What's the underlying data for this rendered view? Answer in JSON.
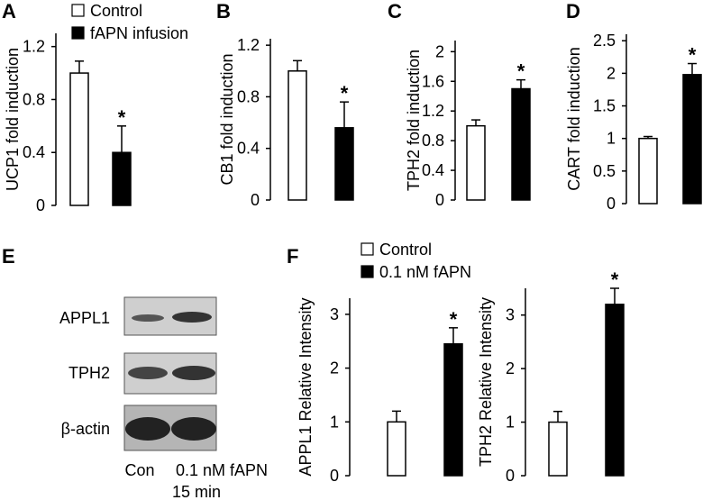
{
  "chart_data": [
    {
      "type": "bar",
      "panel": "A",
      "ylabel": "UCP1 fold induction",
      "ylim": [
        0,
        1.3
      ],
      "yticks": [
        0,
        0.4,
        0.8,
        1.2
      ],
      "annotation": "*",
      "series": [
        {
          "name": "Control",
          "color": "#ffffff",
          "values": [
            1.0
          ],
          "errors": [
            0.09
          ]
        },
        {
          "name": "fAPN infusion",
          "color": "#000000",
          "values": [
            0.4
          ],
          "errors": [
            0.2
          ]
        }
      ]
    },
    {
      "type": "bar",
      "panel": "B",
      "ylabel": "CB1 fold induction",
      "ylim": [
        0,
        1.25
      ],
      "yticks": [
        0,
        0.4,
        0.8,
        1.2
      ],
      "annotation": "*",
      "series": [
        {
          "color": "#ffffff",
          "values": [
            1.0
          ],
          "errors": [
            0.08
          ]
        },
        {
          "color": "#000000",
          "values": [
            0.56
          ],
          "errors": [
            0.2
          ]
        }
      ]
    },
    {
      "type": "bar",
      "panel": "C",
      "ylabel": "TPH2 fold induction",
      "ylim": [
        0,
        2.15
      ],
      "yticks": [
        0,
        0.4,
        0.8,
        1.2,
        1.6,
        2
      ],
      "annotation": "*",
      "series": [
        {
          "color": "#ffffff",
          "values": [
            1.0
          ],
          "errors": [
            0.08
          ]
        },
        {
          "color": "#000000",
          "values": [
            1.5
          ],
          "errors": [
            0.12
          ]
        }
      ]
    },
    {
      "type": "bar",
      "panel": "D",
      "ylabel": "CART fold induction",
      "ylim": [
        0,
        2.6
      ],
      "yticks": [
        0,
        0.5,
        1,
        1.5,
        2,
        2.5
      ],
      "annotation": "*",
      "series": [
        {
          "color": "#ffffff",
          "values": [
            1.0
          ],
          "errors": [
            0.03
          ]
        },
        {
          "color": "#000000",
          "values": [
            1.98
          ],
          "errors": [
            0.17
          ]
        }
      ]
    },
    {
      "type": "bar",
      "panel": "F",
      "ylabel": "APPL1 Relative Intensity",
      "ylim": [
        0,
        3.3
      ],
      "yticks": [
        0,
        1,
        2,
        3
      ],
      "annotation": "*",
      "series": [
        {
          "name": "Control",
          "color": "#ffffff",
          "values": [
            1.0
          ],
          "errors": [
            0.2
          ]
        },
        {
          "name": "0.1 nM fAPN",
          "color": "#000000",
          "values": [
            2.45
          ],
          "errors": [
            0.3
          ]
        }
      ]
    },
    {
      "type": "bar",
      "ylabel": "TPH2 Relative Intensity",
      "ylim": [
        0,
        3.5
      ],
      "yticks": [
        0,
        1,
        2,
        3
      ],
      "annotation": "*",
      "series": [
        {
          "color": "#ffffff",
          "values": [
            1.0
          ],
          "errors": [
            0.2
          ]
        },
        {
          "color": "#000000",
          "values": [
            3.2
          ],
          "errors": [
            0.3
          ]
        }
      ]
    }
  ],
  "blot": {
    "panel": "E",
    "rows": [
      "APPL1",
      "TPH2",
      "β-actin"
    ],
    "lanes": [
      "Con",
      "0.1 nM fAPN"
    ],
    "note": "15 min"
  }
}
